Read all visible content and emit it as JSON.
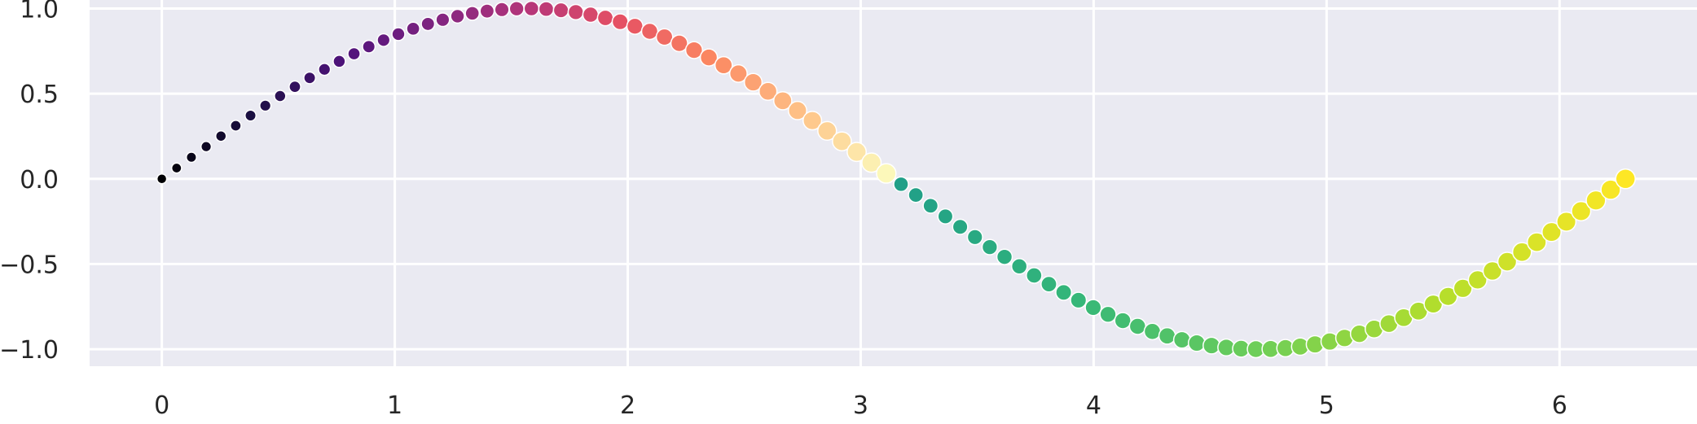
{
  "chart_data": {
    "type": "scatter",
    "title": "",
    "xlabel": "",
    "ylabel": "",
    "xlim": [
      -0.31,
      6.59
    ],
    "ylim": [
      -1.1,
      1.05
    ],
    "x_ticks": [
      0,
      1,
      2,
      3,
      4,
      5,
      6
    ],
    "y_ticks": [
      1.0,
      0.5,
      0.0,
      -0.5,
      -1.0
    ],
    "x_tick_labels": [
      "0",
      "1",
      "2",
      "3",
      "4",
      "5",
      "6"
    ],
    "y_tick_labels": [
      "1.0",
      "0.5",
      "0.0",
      "−0.5",
      "−1.0"
    ],
    "grid": true,
    "background": "#eaeaf2",
    "series": [
      {
        "function": "y = sin(x)",
        "x_start": 0,
        "x_end": 6.283,
        "n_points": 100,
        "color_by": "sign of y, position along curve",
        "positive_colormap": "magma",
        "negative_colormap": "viridis (upper)",
        "size_range": [
          12,
          24
        ]
      }
    ]
  }
}
